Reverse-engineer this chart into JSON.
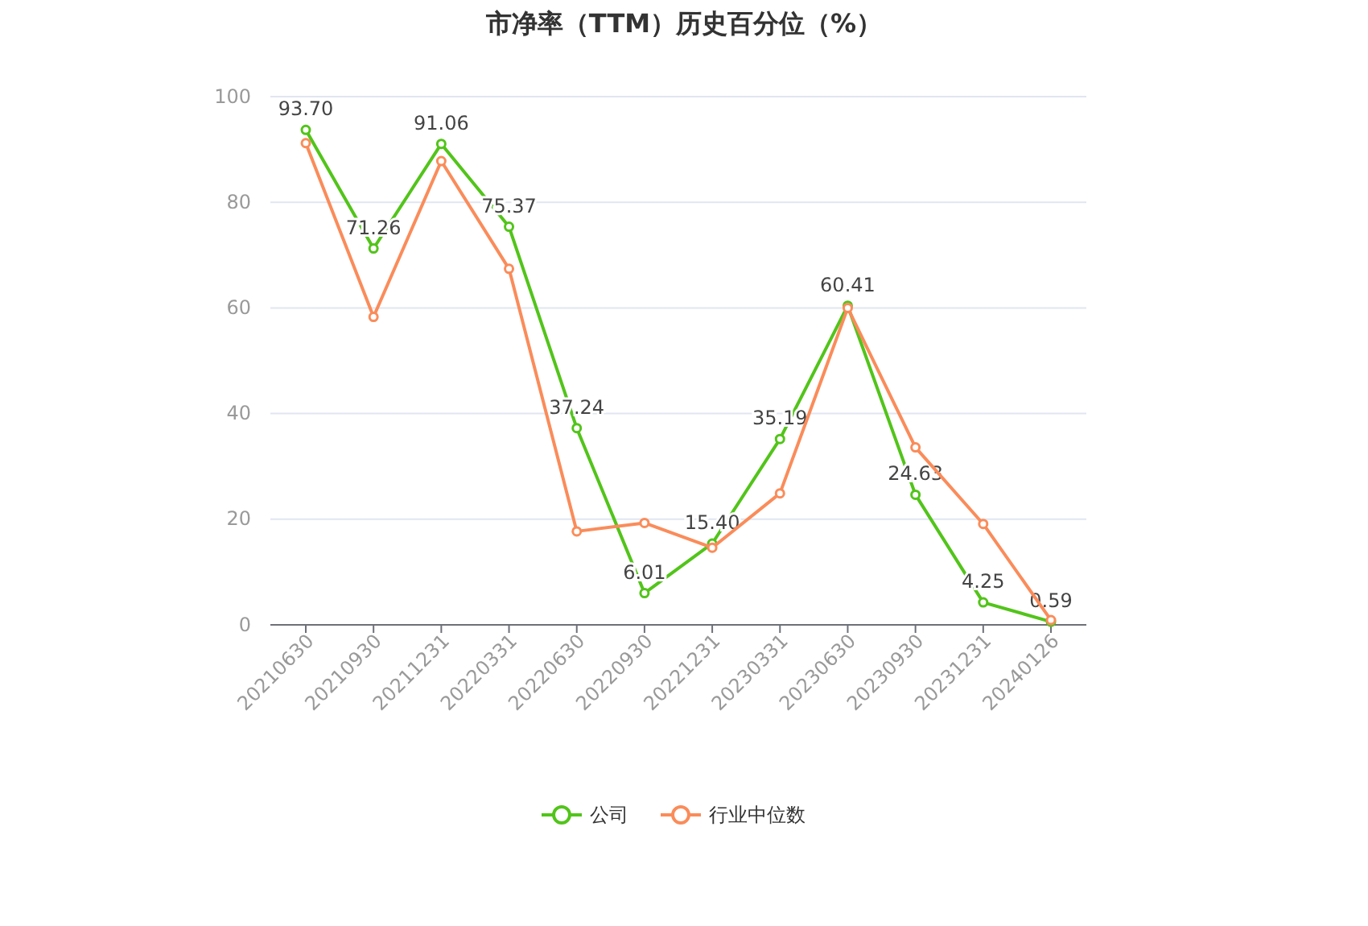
{
  "chart_data": {
    "type": "line",
    "title": "市净率（TTM）历史百分位（%）",
    "categories": [
      "20210630",
      "20210930",
      "20211231",
      "20220331",
      "20220630",
      "20220930",
      "20221231",
      "20230331",
      "20230630",
      "20230930",
      "20231231",
      "20240126"
    ],
    "series": [
      {
        "name": "公司",
        "color": "#52c41a",
        "values": [
          93.7,
          71.26,
          91.06,
          75.37,
          37.24,
          6.01,
          15.4,
          35.19,
          60.41,
          24.63,
          4.25,
          0.59
        ],
        "value_labels": [
          "93.70",
          "71.26",
          "91.06",
          "75.37",
          "37.24",
          "6.01",
          "15.40",
          "35.19",
          "60.41",
          "24.63",
          "4.25",
          "0.59"
        ]
      },
      {
        "name": "行业中位数",
        "color": "#fa8c5a",
        "values": [
          91.2,
          58.3,
          87.8,
          67.4,
          17.7,
          19.3,
          14.6,
          24.9,
          60.0,
          33.6,
          19.1,
          0.9
        ]
      }
    ],
    "ylim": [
      0,
      100
    ],
    "yticks": [
      0,
      20,
      40,
      60,
      80,
      100
    ],
    "grid": "y",
    "legend": "bottom",
    "marker": "circle",
    "line_style": "solid"
  }
}
